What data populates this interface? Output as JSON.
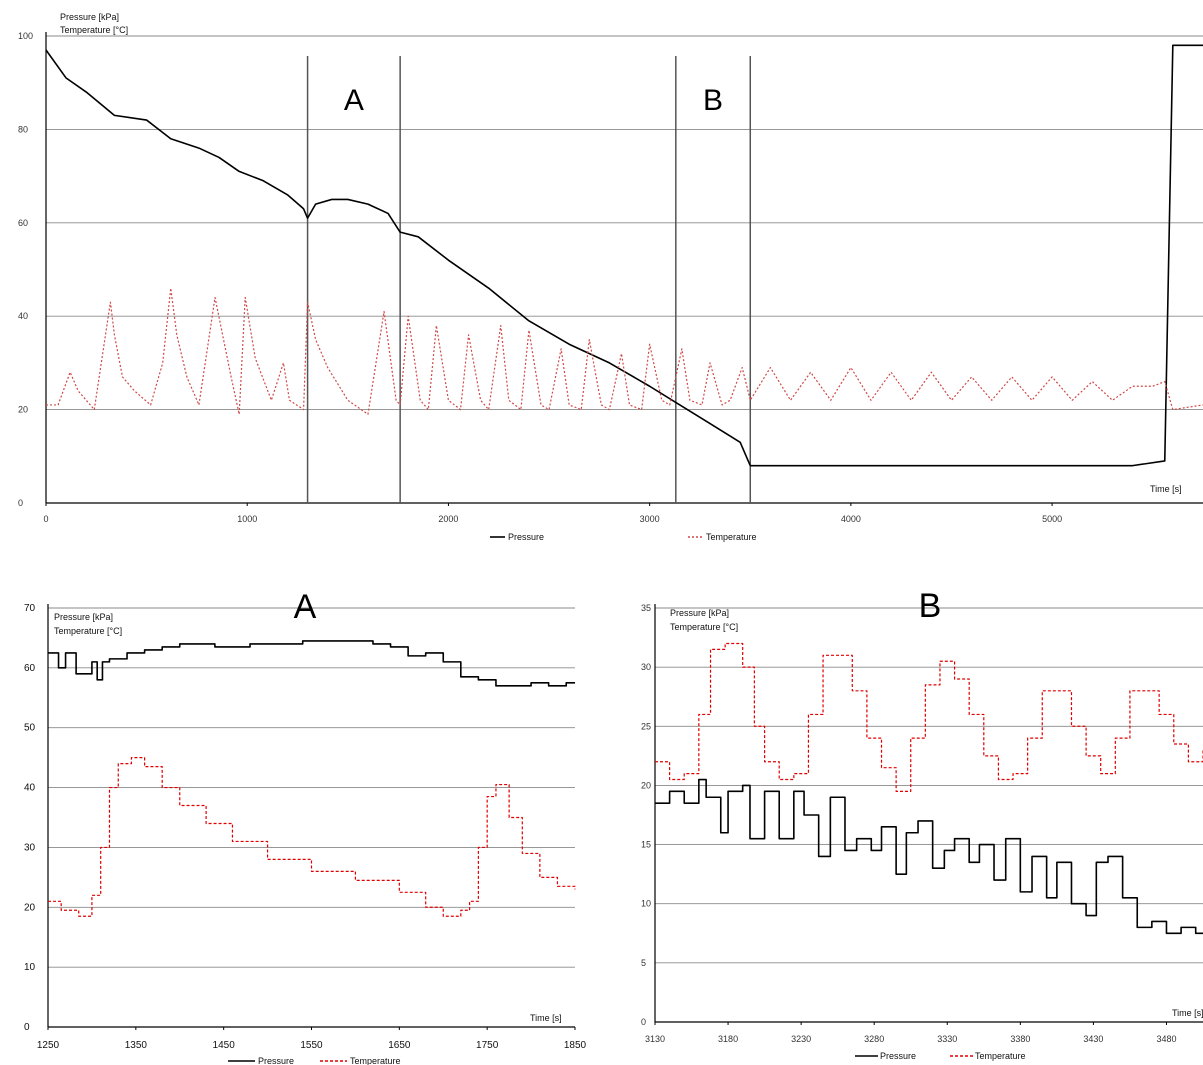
{
  "chart_data": [
    {
      "id": "overview",
      "type": "line",
      "ylabel": [
        "Pressure [kPa]",
        "Temperature [°C]"
      ],
      "xlabel": "Time [s]",
      "xlim": [
        0,
        5750
      ],
      "ylim": [
        0,
        100
      ],
      "yticks": [
        0,
        20,
        40,
        60,
        80,
        100
      ],
      "xticks": [
        0,
        1000,
        2000,
        3000,
        4000,
        5000
      ],
      "grid": "horizontal",
      "legend": "bottom",
      "regions": [
        {
          "label": "A",
          "x0": 1300,
          "x1": 1760
        },
        {
          "label": "B",
          "x0": 3130,
          "x1": 3500
        }
      ],
      "series": [
        {
          "name": "Pressure",
          "color": "#000000",
          "style": "solid",
          "x": [
            0,
            100,
            200,
            340,
            500,
            620,
            760,
            860,
            960,
            1080,
            1200,
            1280,
            1300,
            1340,
            1420,
            1500,
            1600,
            1700,
            1760,
            1850,
            2000,
            2200,
            2400,
            2600,
            2800,
            3000,
            3150,
            3300,
            3450,
            3500,
            3600,
            3700,
            3800,
            4000,
            4200,
            4400,
            4600,
            4800,
            5000,
            5200,
            5400,
            5560,
            5600,
            5650,
            5750
          ],
          "y": [
            97,
            91,
            88,
            83,
            82,
            78,
            76,
            74,
            71,
            69,
            66,
            63,
            61,
            64,
            65,
            65,
            64,
            62,
            58,
            57,
            52,
            46,
            39,
            34,
            30,
            25,
            21,
            17,
            13,
            8,
            8,
            8,
            8,
            8,
            8,
            8,
            8,
            8,
            8,
            8,
            8,
            9,
            98,
            98,
            98
          ]
        },
        {
          "name": "Temperature",
          "color": "#d04848",
          "style": "dotted",
          "x": [
            0,
            60,
            120,
            160,
            240,
            320,
            340,
            380,
            440,
            520,
            580,
            620,
            650,
            700,
            760,
            840,
            920,
            960,
            990,
            1040,
            1120,
            1180,
            1210,
            1280,
            1300,
            1340,
            1400,
            1500,
            1600,
            1680,
            1740,
            1760,
            1800,
            1860,
            1900,
            1940,
            2000,
            2060,
            2100,
            2160,
            2200,
            2260,
            2300,
            2360,
            2400,
            2460,
            2500,
            2560,
            2600,
            2660,
            2700,
            2760,
            2800,
            2860,
            2900,
            2960,
            3000,
            3060,
            3100,
            3160,
            3200,
            3260,
            3300,
            3360,
            3400,
            3460,
            3500,
            3600,
            3700,
            3800,
            3900,
            4000,
            4100,
            4200,
            4300,
            4400,
            4500,
            4600,
            4700,
            4800,
            4900,
            5000,
            5100,
            5200,
            5300,
            5400,
            5450,
            5500,
            5560,
            5600,
            5750
          ],
          "y": [
            21,
            21,
            28,
            24,
            20,
            43,
            36,
            27,
            24,
            21,
            30,
            46,
            36,
            27,
            21,
            44,
            27,
            19,
            44,
            31,
            22,
            30,
            22,
            20,
            43,
            35,
            29,
            22,
            19,
            41,
            22,
            21,
            40,
            22,
            20,
            38,
            22,
            20,
            36,
            22,
            20,
            38,
            22,
            20,
            37,
            21,
            20,
            33,
            21,
            20,
            35,
            21,
            20,
            32,
            21,
            20,
            34,
            22,
            21,
            33,
            22,
            21,
            30,
            21,
            22,
            29,
            22,
            29,
            22,
            28,
            22,
            29,
            22,
            28,
            22,
            28,
            22,
            27,
            22,
            27,
            22,
            27,
            22,
            26,
            22,
            25,
            25,
            25,
            26,
            20,
            21
          ]
        }
      ],
      "legend_entries": [
        "Pressure",
        "Temperature"
      ]
    },
    {
      "id": "A",
      "title": "A",
      "type": "line",
      "ylabel": [
        "Pressure [kPa]",
        "Temperature [°C]"
      ],
      "xlabel": "Time [s]",
      "xlim": [
        1250,
        1850
      ],
      "ylim": [
        0,
        70
      ],
      "yticks": [
        0,
        10,
        20,
        30,
        40,
        50,
        60,
        70
      ],
      "xticks": [
        1250,
        1350,
        1450,
        1550,
        1650,
        1750,
        1850
      ],
      "grid": "horizontal",
      "legend": "bottom",
      "series": [
        {
          "name": "Pressure",
          "color": "#000000",
          "style": "solid",
          "x": [
            1250,
            1262,
            1270,
            1282,
            1300,
            1306,
            1312,
            1320,
            1340,
            1360,
            1380,
            1400,
            1420,
            1440,
            1460,
            1480,
            1500,
            1520,
            1540,
            1560,
            1580,
            1600,
            1620,
            1640,
            1660,
            1680,
            1700,
            1720,
            1740,
            1760,
            1780,
            1800,
            1820,
            1840,
            1850
          ],
          "y": [
            62.5,
            60,
            62.5,
            59,
            61,
            58,
            61,
            61.5,
            62.5,
            63,
            63.5,
            64,
            64,
            63.5,
            63.5,
            64,
            64,
            64,
            64.5,
            64.5,
            64.5,
            64.5,
            64,
            63.5,
            62,
            62.5,
            61,
            58.5,
            58,
            57,
            57,
            57.5,
            57,
            57.5,
            57.5
          ]
        },
        {
          "name": "Temperature",
          "color": "#e00000",
          "style": "dashed",
          "x": [
            1250,
            1265,
            1285,
            1300,
            1310,
            1320,
            1330,
            1345,
            1360,
            1380,
            1400,
            1430,
            1460,
            1500,
            1550,
            1600,
            1650,
            1680,
            1700,
            1720,
            1730,
            1740,
            1750,
            1760,
            1775,
            1790,
            1810,
            1830,
            1850
          ],
          "y": [
            21,
            19.5,
            18.5,
            22,
            30,
            40,
            44,
            45,
            43.5,
            40,
            37,
            34,
            31,
            28,
            26,
            24.5,
            22.5,
            20,
            18.5,
            19.5,
            21,
            30,
            38.5,
            40.5,
            35,
            29,
            25,
            23.5,
            23
          ]
        }
      ],
      "legend_entries": [
        "Pressure",
        "Temperature"
      ]
    },
    {
      "id": "B",
      "title": "B",
      "type": "line",
      "ylabel": [
        "Pressure [kPa]",
        "Temperature [°C]"
      ],
      "xlabel": "Time [s]",
      "xlim": [
        3130,
        3505
      ],
      "ylim": [
        0,
        35
      ],
      "yticks": [
        0,
        5,
        10,
        15,
        20,
        25,
        30,
        35
      ],
      "xticks": [
        3130,
        3180,
        3230,
        3280,
        3330,
        3380,
        3430,
        3480
      ],
      "xtick_labels": [
        "3130",
        "3180",
        "3230",
        "3280",
        "3330",
        "3380",
        "3430",
        "3480"
      ],
      "grid": "horizontal",
      "legend": "bottom",
      "series": [
        {
          "name": "Pressure",
          "color": "#000000",
          "style": "solid",
          "x": [
            3130,
            3140,
            3150,
            3160,
            3165,
            3175,
            3180,
            3190,
            3195,
            3205,
            3215,
            3225,
            3232,
            3242,
            3250,
            3260,
            3268,
            3278,
            3285,
            3295,
            3302,
            3310,
            3320,
            3328,
            3335,
            3345,
            3352,
            3362,
            3370,
            3380,
            3388,
            3398,
            3405,
            3415,
            3425,
            3432,
            3440,
            3450,
            3460,
            3470,
            3480,
            3490,
            3500,
            3505
          ],
          "y": [
            18.5,
            19.5,
            18.5,
            20.5,
            19,
            16,
            19.5,
            20,
            15.5,
            19.5,
            15.5,
            19.5,
            17.5,
            14,
            19,
            14.5,
            15.5,
            14.5,
            16.5,
            12.5,
            16,
            17,
            13,
            14.5,
            15.5,
            13.5,
            15,
            12,
            15.5,
            11,
            14,
            10.5,
            13.5,
            10,
            9,
            13.5,
            14,
            10.5,
            8,
            8.5,
            7.5,
            8,
            7.5,
            7.5
          ]
        },
        {
          "name": "Temperature",
          "color": "#e00000",
          "style": "dashed",
          "x": [
            3130,
            3140,
            3150,
            3160,
            3168,
            3178,
            3190,
            3198,
            3205,
            3215,
            3225,
            3235,
            3245,
            3255,
            3265,
            3275,
            3285,
            3295,
            3305,
            3315,
            3325,
            3335,
            3345,
            3355,
            3365,
            3375,
            3385,
            3395,
            3405,
            3415,
            3425,
            3435,
            3445,
            3455,
            3465,
            3475,
            3485,
            3495,
            3505
          ],
          "y": [
            22,
            20.5,
            21,
            26,
            31.5,
            32,
            30,
            25,
            22,
            20.5,
            21,
            26,
            31,
            31,
            28,
            24,
            21.5,
            19.5,
            24,
            28.5,
            30.5,
            29,
            26,
            22.5,
            20.5,
            21,
            24,
            28,
            28,
            25,
            22.5,
            21,
            24,
            28,
            28,
            26,
            23.5,
            22,
            23
          ]
        }
      ],
      "legend_entries": [
        "Pressure",
        "Temperature"
      ]
    }
  ]
}
